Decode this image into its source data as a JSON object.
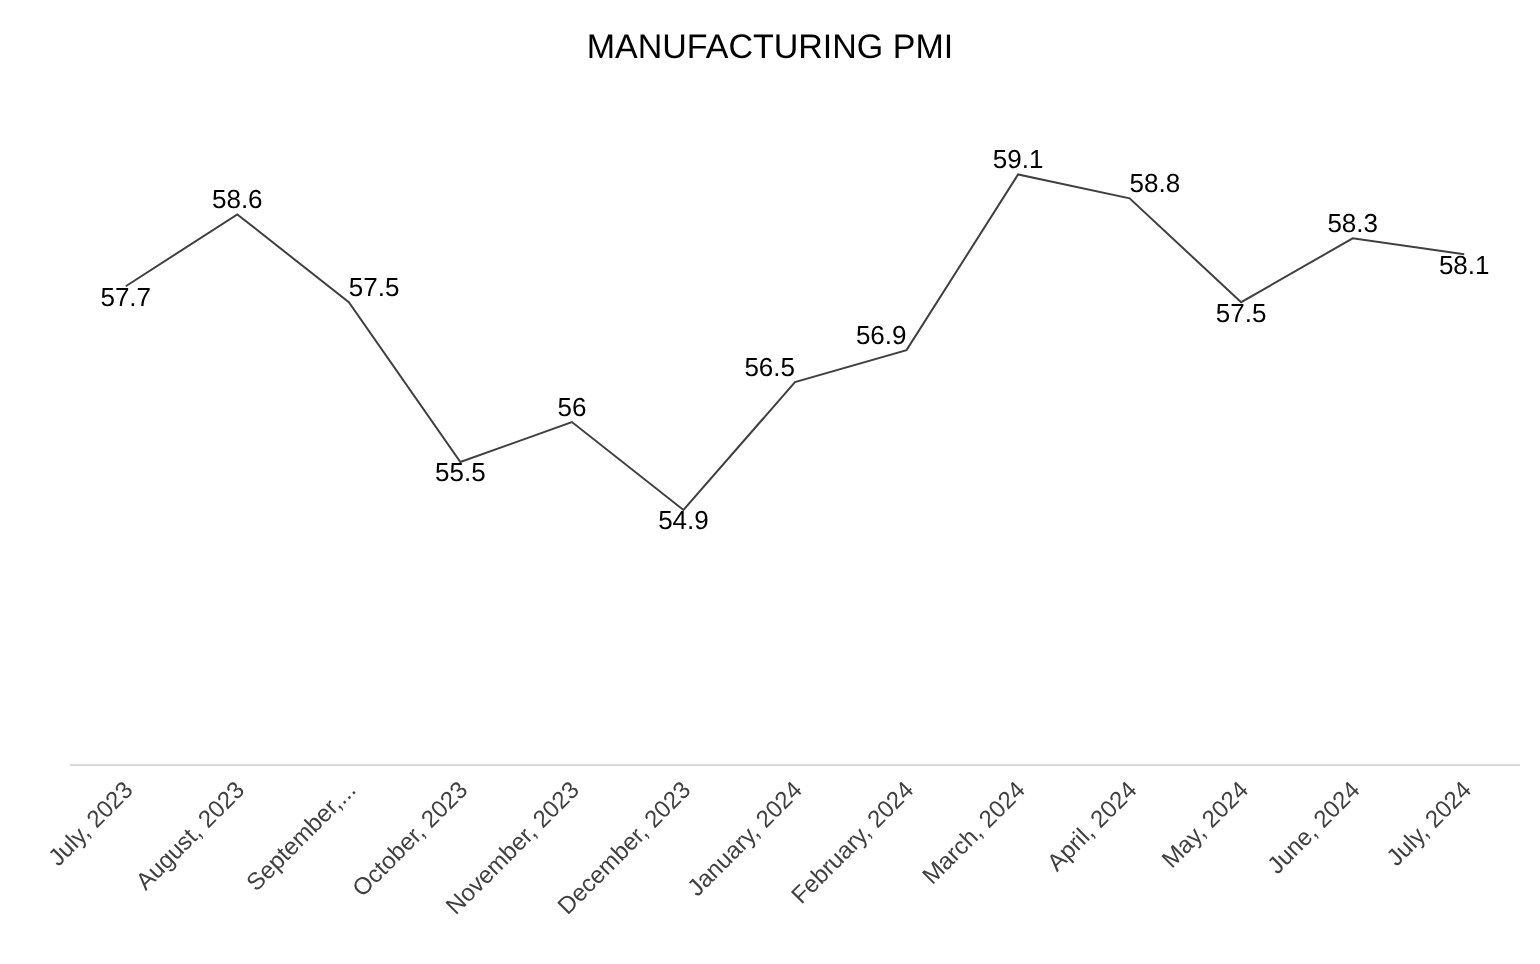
{
  "chart_data": {
    "type": "line",
    "title": "MANUFACTURING PMI",
    "categories": [
      "July, 2023",
      "August, 2023",
      "September,...",
      "October, 2023",
      "November, 2023",
      "December, 2023",
      "January, 2024",
      "February, 2024",
      "March, 2024",
      "April, 2024",
      "May, 2024",
      "June, 2024",
      "July, 2024"
    ],
    "series": [
      {
        "color": "#404040",
        "values": [
          57.7,
          58.6,
          57.5,
          55.5,
          56,
          54.9,
          56.5,
          56.9,
          59.1,
          58.8,
          57.5,
          58.3,
          58.1
        ]
      }
    ],
    "data_labels": true,
    "tick_labels": "x",
    "marker": "none",
    "line_style": "solid"
  }
}
